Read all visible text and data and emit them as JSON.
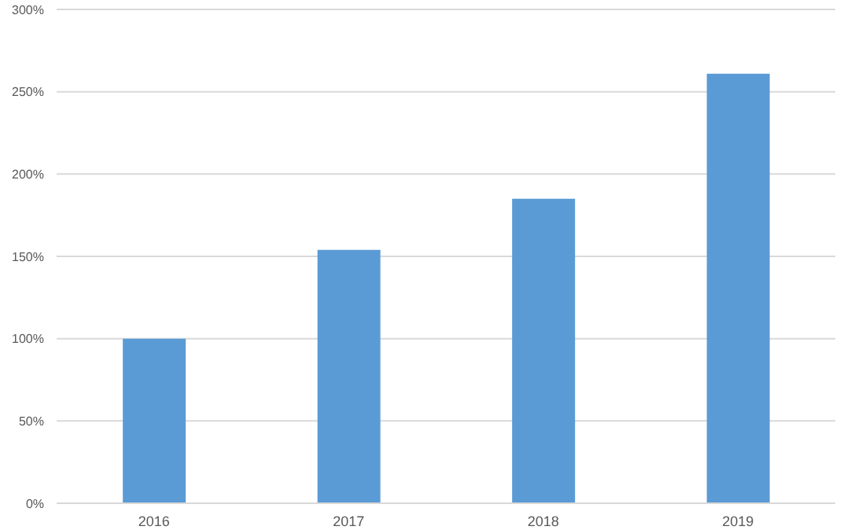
{
  "chart_data": {
    "type": "bar",
    "categories": [
      "2016",
      "2017",
      "2018",
      "2019"
    ],
    "values": [
      100,
      154,
      185,
      261
    ],
    "color": "#5b9bd5",
    "ylim": [
      0,
      300
    ],
    "yticks": [
      {
        "value": 0,
        "label": "0%"
      },
      {
        "value": 50,
        "label": "50%"
      },
      {
        "value": 100,
        "label": "100%"
      },
      {
        "value": 150,
        "label": "150%"
      },
      {
        "value": 200,
        "label": "200%"
      },
      {
        "value": 250,
        "label": "250%"
      },
      {
        "value": 300,
        "label": "300%"
      }
    ],
    "grid": "y"
  }
}
